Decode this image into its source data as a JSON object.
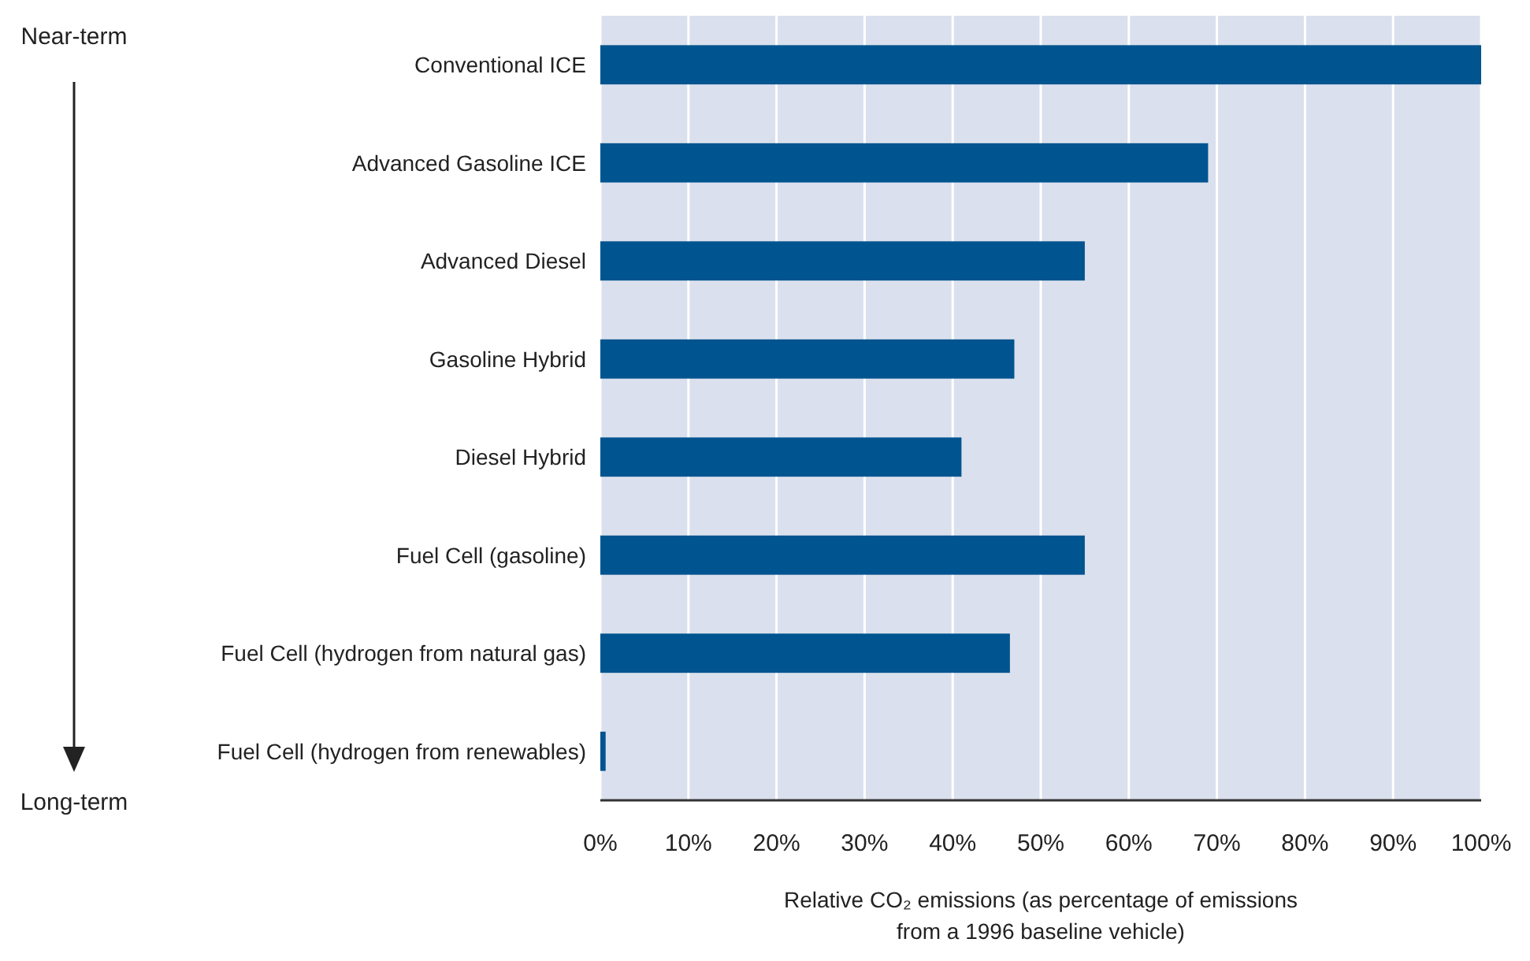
{
  "chart_data": {
    "type": "bar",
    "orientation": "horizontal",
    "categories": [
      "Conventional ICE",
      "Advanced Gasoline ICE",
      "Advanced Diesel",
      "Gasoline Hybrid",
      "Diesel Hybrid",
      "Fuel Cell (gasoline)",
      "Fuel Cell (hydrogen from natural gas)",
      "Fuel Cell (hydrogen from renewables)"
    ],
    "values": [
      100,
      69,
      55,
      47,
      41,
      55,
      46.5,
      0.6
    ],
    "color": "#00548f",
    "xlim": [
      0,
      100
    ],
    "xticks": [
      {
        "value": 0,
        "label": "0%"
      },
      {
        "value": 10,
        "label": "10%"
      },
      {
        "value": 20,
        "label": "20%"
      },
      {
        "value": 30,
        "label": "30%"
      },
      {
        "value": 40,
        "label": "40%"
      },
      {
        "value": 50,
        "label": "50%"
      },
      {
        "value": 60,
        "label": "60%"
      },
      {
        "value": 70,
        "label": "70%"
      },
      {
        "value": 80,
        "label": "80%"
      },
      {
        "value": 90,
        "label": "90%"
      },
      {
        "value": 100,
        "label": "100%"
      }
    ],
    "xlabel": "Relative CO₂ emissions (as percentage of emissions from a 1996 baseline vehicle)",
    "grid": "x",
    "annotations": [
      "Near-term",
      "Long-term"
    ]
  }
}
